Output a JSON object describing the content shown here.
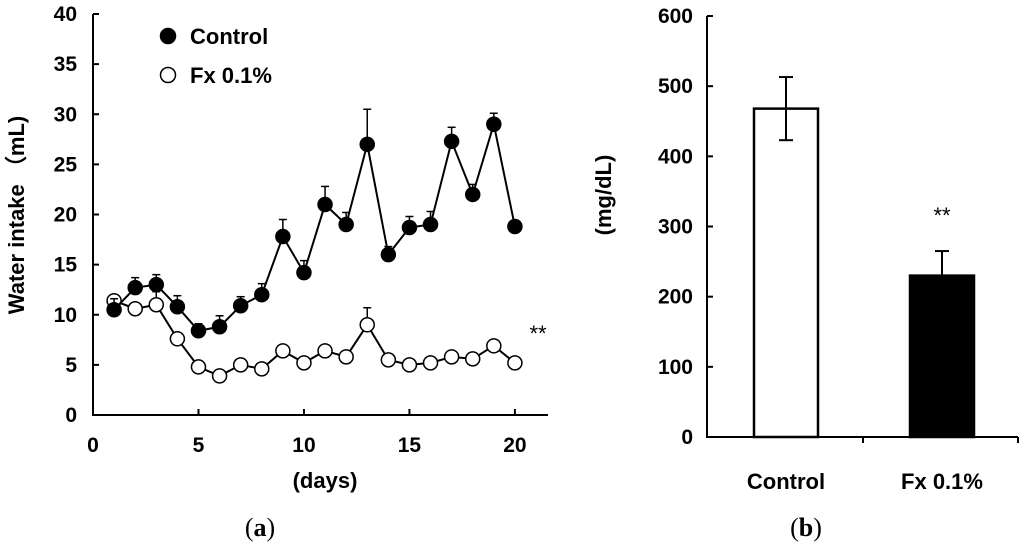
{
  "chart_data": [
    {
      "type": "line",
      "panel_label": "(a)",
      "xlabel": "(days)",
      "ylabel": "Water intake （mL)",
      "xlim": [
        0,
        21
      ],
      "ylim": [
        0,
        40
      ],
      "xticks": [
        "0",
        "5",
        "10",
        "15",
        "20"
      ],
      "yticks": [
        "0",
        "5",
        "10",
        "15",
        "20",
        "25",
        "30",
        "35",
        "40"
      ],
      "legend": {
        "position": "top-left"
      },
      "x": [
        1,
        2,
        3,
        4,
        5,
        6,
        7,
        8,
        9,
        10,
        11,
        12,
        13,
        14,
        15,
        16,
        17,
        18,
        19,
        20
      ],
      "series": [
        {
          "name": "Control",
          "marker": "filled-circle",
          "values": [
            10.5,
            12.7,
            13.0,
            10.8,
            8.4,
            8.8,
            10.9,
            12.0,
            17.8,
            14.2,
            21.0,
            19.0,
            27.0,
            16.0,
            18.7,
            19.0,
            27.3,
            22.0,
            29.0,
            18.8
          ],
          "errors": [
            1.1,
            1.0,
            1.0,
            1.1,
            0.7,
            1.1,
            0.9,
            1.1,
            1.7,
            1.2,
            1.8,
            1.2,
            3.5,
            0.8,
            1.1,
            1.3,
            1.4,
            1.0,
            1.1,
            0.6
          ]
        },
        {
          "name": "Fx 0.1%",
          "marker": "open-circle",
          "values": [
            11.4,
            10.6,
            11.0,
            7.6,
            4.8,
            3.9,
            5.0,
            4.6,
            6.4,
            5.2,
            6.4,
            5.8,
            9.0,
            5.5,
            5.0,
            5.2,
            5.8,
            5.6,
            6.9,
            5.2
          ],
          "errors": [
            0.5,
            0.5,
            1.3,
            0.6,
            0.4,
            0.4,
            0.4,
            0.5,
            0.5,
            0.4,
            0.4,
            0.4,
            1.7,
            0.5,
            0.4,
            0.4,
            0.5,
            0.6,
            0.5,
            0.3
          ]
        }
      ],
      "annotation": "**"
    },
    {
      "type": "bar",
      "panel_label": "(b)",
      "ylabel": "(mg/dL)",
      "ylim": [
        0,
        600
      ],
      "yticks": [
        "0",
        "100",
        "200",
        "300",
        "400",
        "500",
        "600"
      ],
      "categories": [
        "Control",
        "Fx 0.1%"
      ],
      "values": [
        468,
        230
      ],
      "errors": [
        45,
        35
      ],
      "bar_colors": [
        "#ffffff",
        "#000000"
      ],
      "annotation": "**"
    }
  ]
}
